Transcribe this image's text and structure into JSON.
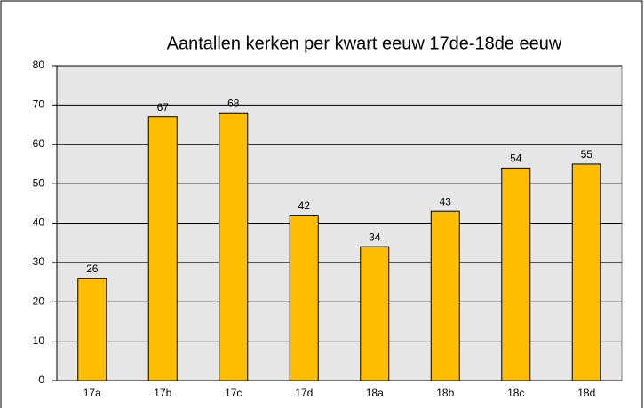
{
  "chart_data": {
    "type": "bar",
    "title": "Aantallen kerken per kwart eeuw 17de-18de eeuw",
    "categories": [
      "17a",
      "17b",
      "17c",
      "17d",
      "18a",
      "18b",
      "18c",
      "18d"
    ],
    "values": [
      26,
      67,
      68,
      42,
      34,
      43,
      54,
      55
    ],
    "color": "#ffbf00",
    "ylim": [
      0,
      80
    ],
    "yticks": [
      0,
      10,
      20,
      30,
      40,
      50,
      60,
      70,
      80
    ],
    "grid": true
  }
}
